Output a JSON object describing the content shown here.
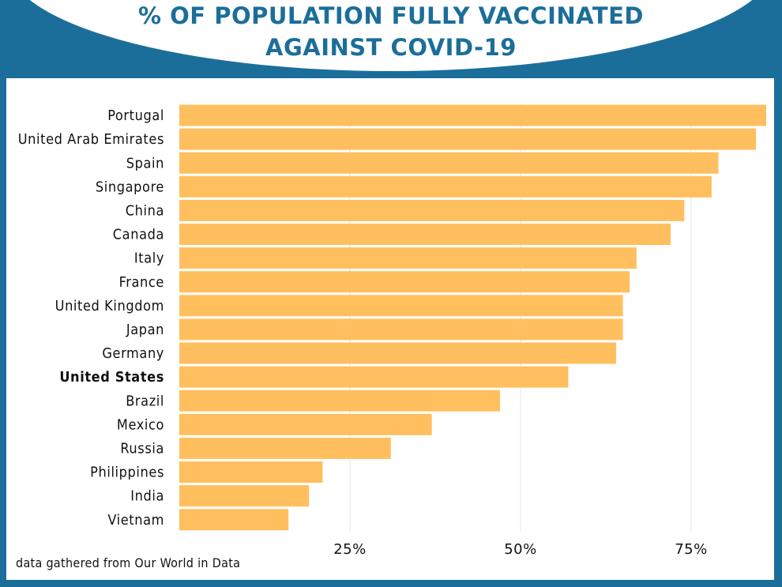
{
  "title": {
    "line1": "% OF POPULATION FULLY VACCINATED",
    "line2": "AGAINST COVID-19"
  },
  "source": "data gathered from Our World in Data",
  "chart_data": {
    "type": "bar",
    "orientation": "horizontal",
    "categories": [
      "Portugal",
      "United Arab Emirates",
      "Spain",
      "Singapore",
      "China",
      "Canada",
      "Italy",
      "France",
      "United Kingdom",
      "Japan",
      "Germany",
      "United States",
      "Brazil",
      "Mexico",
      "Russia",
      "Philippines",
      "India",
      "Vietnam"
    ],
    "values": [
      86,
      84.5,
      79,
      78,
      74,
      72,
      67,
      66,
      65,
      65,
      64,
      57,
      47,
      37,
      31,
      21,
      19,
      16
    ],
    "highlight": "United States",
    "x_ticks": [
      25,
      50,
      75
    ],
    "x_tick_labels": [
      "25%",
      "50%",
      "75%"
    ],
    "xlim": [
      0,
      86
    ],
    "grid": true,
    "bar_color": "#ffbf5e",
    "title": "% OF POPULATION FULLY VACCINATED AGAINST COVID-19"
  },
  "colors": {
    "frame": "#1c6e9a",
    "bar": "#ffbf5e",
    "text": "#111111"
  }
}
